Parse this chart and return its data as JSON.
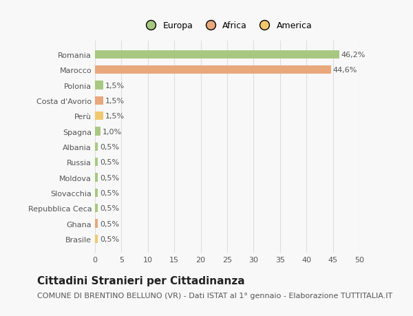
{
  "categories": [
    "Brasile",
    "Ghana",
    "Repubblica Ceca",
    "Slovacchia",
    "Moldova",
    "Russia",
    "Albania",
    "Spagna",
    "Perù",
    "Costa d'Avorio",
    "Polonia",
    "Marocco",
    "Romania"
  ],
  "values": [
    0.5,
    0.5,
    0.5,
    0.5,
    0.5,
    0.5,
    0.5,
    1.0,
    1.5,
    1.5,
    1.5,
    44.6,
    46.2
  ],
  "labels": [
    "0,5%",
    "0,5%",
    "0,5%",
    "0,5%",
    "0,5%",
    "0,5%",
    "0,5%",
    "1,0%",
    "1,5%",
    "1,5%",
    "1,5%",
    "44,6%",
    "46,2%"
  ],
  "colors": [
    "#f0c96e",
    "#e8a87c",
    "#a8c882",
    "#a8c882",
    "#a8c882",
    "#a8c882",
    "#a8c882",
    "#a8c882",
    "#f0c96e",
    "#e8a87c",
    "#a8c882",
    "#e8a87c",
    "#a8c882"
  ],
  "legend_labels": [
    "Europa",
    "Africa",
    "America"
  ],
  "legend_colors": [
    "#a8c882",
    "#e8a87c",
    "#f0c96e"
  ],
  "xlim": [
    0,
    50
  ],
  "xticks": [
    0,
    5,
    10,
    15,
    20,
    25,
    30,
    35,
    40,
    45,
    50
  ],
  "title": "Cittadini Stranieri per Cittadinanza",
  "subtitle": "COMUNE DI BRENTINO BELLUNO (VR) - Dati ISTAT al 1° gennaio - Elaborazione TUTTITALIA.IT",
  "background_color": "#f8f8f8",
  "grid_color": "#dddddd",
  "bar_height": 0.55,
  "title_fontsize": 11,
  "subtitle_fontsize": 8,
  "label_fontsize": 8,
  "tick_fontsize": 8,
  "text_color": "#555555"
}
